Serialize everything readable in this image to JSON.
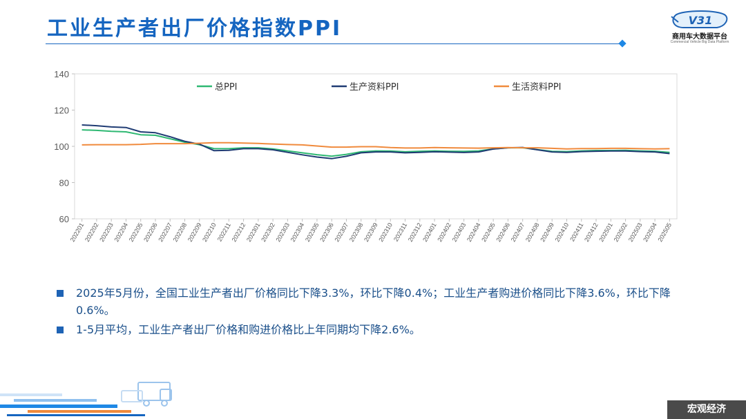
{
  "header": {
    "title": "工业生产者出厂价格指数PPI",
    "logo_mark": "V31",
    "logo_name": "商用车大数据平台",
    "logo_subtitle": "Commercial Vehicle Big Data Platform"
  },
  "colors": {
    "title": "#1565c0",
    "total_ppi": "#2eb872",
    "producer_ppi": "#1f3b73",
    "consumer_ppi": "#f08a3c"
  },
  "chart_data": {
    "type": "line",
    "title": "",
    "xlabel": "",
    "ylabel": "",
    "ylim": [
      60,
      140
    ],
    "yticks": [
      60,
      80,
      100,
      120,
      140
    ],
    "grid": false,
    "legend": "top",
    "x": [
      "202201",
      "202202",
      "202203",
      "202204",
      "202205",
      "202206",
      "202207",
      "202208",
      "202209",
      "202210",
      "202211",
      "202212",
      "202301",
      "202302",
      "202303",
      "202304",
      "202305",
      "202306",
      "202307",
      "202308",
      "202309",
      "202310",
      "202311",
      "202312",
      "202401",
      "202402",
      "202403",
      "202404",
      "202405",
      "202406",
      "202407",
      "202408",
      "202409",
      "202410",
      "202411",
      "202412",
      "202501",
      "202502",
      "202503",
      "202504",
      "202505"
    ],
    "series": [
      {
        "name": "总PPI",
        "color": "#2eb872",
        "values": [
          109.1,
          108.8,
          108.3,
          108.0,
          106.4,
          106.1,
          104.2,
          102.3,
          100.9,
          98.7,
          98.7,
          99.2,
          99.2,
          98.6,
          97.5,
          96.4,
          95.4,
          94.6,
          95.6,
          97.0,
          97.5,
          97.4,
          97.0,
          97.3,
          97.5,
          97.3,
          97.2,
          97.5,
          98.6,
          99.2,
          99.2,
          98.2,
          97.2,
          97.1,
          97.5,
          97.7,
          97.7,
          97.8,
          97.5,
          97.3,
          96.7
        ]
      },
      {
        "name": "生产资料PPI",
        "color": "#1f3b73",
        "values": [
          111.8,
          111.4,
          110.7,
          110.4,
          108.0,
          107.5,
          105.3,
          102.8,
          101.2,
          97.6,
          97.8,
          98.7,
          98.7,
          98.1,
          96.7,
          95.3,
          94.1,
          93.2,
          94.5,
          96.4,
          96.9,
          96.9,
          96.4,
          96.7,
          97.0,
          96.8,
          96.6,
          96.9,
          98.5,
          99.2,
          99.4,
          98.1,
          96.9,
          96.7,
          97.1,
          97.3,
          97.4,
          97.4,
          97.1,
          96.9,
          96.0
        ]
      },
      {
        "name": "生活资料PPI",
        "color": "#f08a3c",
        "values": [
          100.8,
          100.9,
          100.9,
          100.9,
          101.1,
          101.5,
          101.5,
          101.5,
          101.7,
          102.0,
          102.0,
          101.8,
          101.6,
          101.3,
          101.0,
          100.8,
          100.2,
          99.6,
          99.6,
          99.8,
          99.8,
          99.3,
          99.1,
          99.1,
          99.3,
          99.2,
          99.1,
          99.0,
          99.2,
          99.3,
          99.2,
          99.2,
          98.9,
          98.6,
          98.8,
          98.8,
          98.9,
          98.9,
          98.7,
          98.6,
          98.7
        ]
      }
    ]
  },
  "bullets": [
    "2025年5月份，全国工业生产者出厂价格同比下降3.3%，环比下降0.4%；工业生产者购进价格同比下降3.6%，环比下降0.6%。",
    "1-5月平均，工业生产者出厂价格和购进价格比上年同期均下降2.6%。"
  ],
  "footer": {
    "section_label": "宏观经济"
  }
}
